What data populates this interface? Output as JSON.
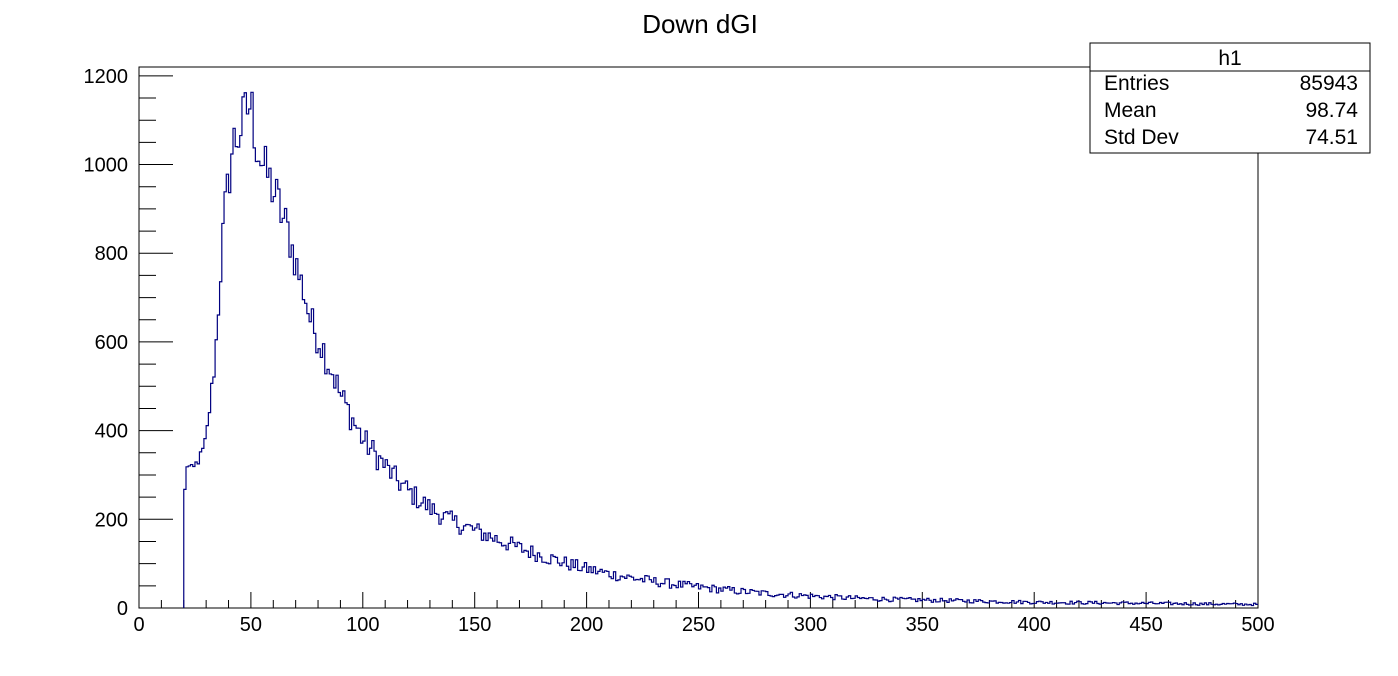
{
  "chart_data": {
    "type": "histogram",
    "title": "Down dGI",
    "xlabel": "",
    "ylabel": "",
    "xlim": [
      0,
      500
    ],
    "ylim": [
      0,
      1220
    ],
    "bin_width": 1,
    "line_color": "#000080",
    "x_ticks": [
      0,
      50,
      100,
      150,
      200,
      250,
      300,
      350,
      400,
      450,
      500
    ],
    "y_ticks": [
      0,
      200,
      400,
      600,
      800,
      1000,
      1200
    ],
    "x_minor_step": 10,
    "y_minor_step": 50,
    "envelope_x": [
      20,
      21,
      22,
      24,
      26,
      28,
      30,
      32,
      34,
      36,
      38,
      40,
      42,
      44,
      46,
      48,
      50,
      52,
      54,
      56,
      58,
      60,
      62,
      64,
      66,
      68,
      70,
      72,
      74,
      76,
      78,
      80,
      82,
      84,
      86,
      88,
      90,
      92,
      94,
      96,
      98,
      100,
      105,
      110,
      115,
      120,
      125,
      130,
      135,
      140,
      145,
      150,
      155,
      160,
      170,
      180,
      190,
      200,
      210,
      220,
      230,
      240,
      250,
      260,
      270,
      280,
      290,
      300,
      320,
      340,
      360,
      380,
      400,
      420,
      440,
      460,
      480,
      500
    ],
    "envelope_y": [
      205,
      325,
      320,
      310,
      330,
      345,
      380,
      470,
      560,
      720,
      880,
      960,
      1050,
      1060,
      1090,
      1120,
      1140,
      1060,
      1020,
      990,
      970,
      940,
      920,
      880,
      860,
      820,
      780,
      740,
      710,
      660,
      630,
      610,
      590,
      560,
      540,
      510,
      480,
      460,
      440,
      420,
      400,
      380,
      350,
      320,
      290,
      265,
      245,
      225,
      210,
      195,
      185,
      175,
      165,
      155,
      135,
      118,
      102,
      88,
      77,
      68,
      60,
      53,
      47,
      42,
      37,
      33,
      30,
      27,
      22,
      19,
      17,
      15,
      13,
      12,
      11,
      10,
      9,
      8
    ],
    "noise_amplitude": [
      [
        20,
        0.03
      ],
      [
        40,
        0.06
      ],
      [
        70,
        0.06
      ],
      [
        150,
        0.12
      ],
      [
        300,
        0.25
      ],
      [
        500,
        0.35
      ]
    ],
    "stats_box": {
      "name": "h1",
      "rows": [
        {
          "label": "Entries",
          "value": "85943"
        },
        {
          "label": "Mean",
          "value": "98.74"
        },
        {
          "label": "Std Dev",
          "value": "74.51"
        }
      ]
    }
  }
}
